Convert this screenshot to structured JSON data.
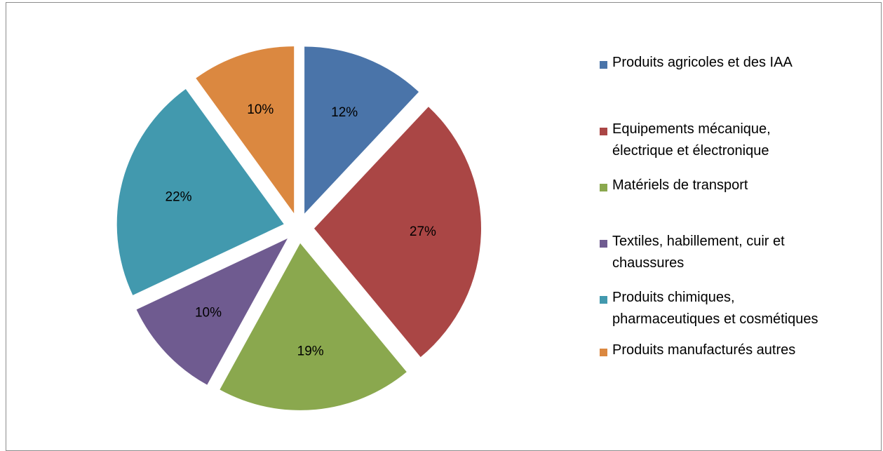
{
  "chart_data": {
    "type": "pie",
    "title": "",
    "exploded": true,
    "legend_position": "right",
    "slices": [
      {
        "label": "Produits agricoles et des IAA",
        "value": 12,
        "display": "12%",
        "color": "#4a74a9"
      },
      {
        "label": "Equipements mécanique, électrique et électronique",
        "value": 27,
        "display": "27%",
        "color": "#aa4645"
      },
      {
        "label": "Matériels de transport",
        "value": 19,
        "display": "19%",
        "color": "#8aa84e"
      },
      {
        "label": "Textiles, habillement, cuir et chaussures",
        "value": 10,
        "display": "10%",
        "color": "#6f5b90"
      },
      {
        "label": "Produits chimiques, pharmaceutiques et cosmétiques",
        "value": 22,
        "display": "22%",
        "color": "#4299ae"
      },
      {
        "label": "Produits manufacturés autres",
        "value": 10,
        "display": "10%",
        "color": "#db8840"
      }
    ]
  },
  "legend": {
    "items": [
      {
        "label": "Produits agricoles et des IAA",
        "color": "#4a74a9"
      },
      {
        "label": "Equipements mécanique,\nélectrique et électronique",
        "color": "#aa4645"
      },
      {
        "label": "Matériels de transport",
        "color": "#8aa84e"
      },
      {
        "label": "Textiles, habillement, cuir et\nchaussures",
        "color": "#6f5b90"
      },
      {
        "label": "Produits chimiques,\npharmaceutiques et cosmétiques",
        "color": "#4299ae"
      },
      {
        "label": "Produits manufacturés autres",
        "color": "#db8840"
      }
    ]
  }
}
